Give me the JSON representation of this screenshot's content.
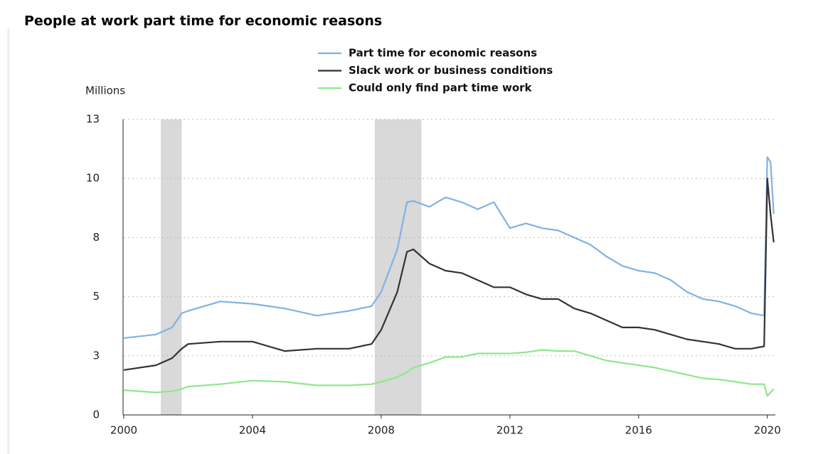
{
  "chart_data": {
    "type": "line",
    "title": "People at work part time for economic reasons",
    "y_label": "Millions",
    "x": [
      2000,
      2001,
      2001.5,
      2001.8,
      2002,
      2003,
      2004,
      2005,
      2006,
      2007,
      2007.7,
      2008,
      2008.5,
      2008.8,
      2009,
      2009.5,
      2010,
      2010.5,
      2011,
      2011.5,
      2012,
      2012.5,
      2013,
      2013.5,
      2014,
      2014.5,
      2015,
      2015.5,
      2016,
      2016.5,
      2017,
      2017.5,
      2018,
      2018.5,
      2019,
      2019.5,
      2019.9,
      2020,
      2020.1,
      2020.2
    ],
    "series": [
      {
        "name": "Part time for economic reasons",
        "color": "#7fb2e5",
        "values": [
          3.25,
          3.4,
          3.7,
          4.3,
          4.4,
          4.8,
          4.7,
          4.5,
          4.2,
          4.4,
          4.6,
          5.2,
          7.0,
          9.0,
          9.05,
          8.8,
          9.2,
          9.0,
          8.7,
          9.0,
          7.9,
          8.1,
          7.9,
          7.8,
          7.5,
          7.2,
          6.7,
          6.3,
          6.1,
          6.0,
          5.7,
          5.2,
          4.9,
          4.8,
          4.6,
          4.3,
          4.2,
          10.9,
          10.7,
          8.5
        ]
      },
      {
        "name": "Slack work or business conditions",
        "color": "#333333",
        "values": [
          1.9,
          2.1,
          2.4,
          2.8,
          3.0,
          3.1,
          3.1,
          2.7,
          2.8,
          2.8,
          3.0,
          3.6,
          5.2,
          6.9,
          7.0,
          6.4,
          6.1,
          6.0,
          5.7,
          5.4,
          5.4,
          5.1,
          4.9,
          4.9,
          4.5,
          4.3,
          4.0,
          3.7,
          3.7,
          3.6,
          3.4,
          3.2,
          3.1,
          3.0,
          2.8,
          2.8,
          2.9,
          10.0,
          8.5,
          7.3
        ]
      },
      {
        "name": "Could only find part time work",
        "color": "#8ee88a",
        "values": [
          1.05,
          0.95,
          1.0,
          1.1,
          1.2,
          1.3,
          1.45,
          1.4,
          1.25,
          1.25,
          1.3,
          1.4,
          1.6,
          1.8,
          2.0,
          2.2,
          2.45,
          2.45,
          2.6,
          2.6,
          2.6,
          2.65,
          2.75,
          2.7,
          2.7,
          2.5,
          2.3,
          2.2,
          2.1,
          2.0,
          1.85,
          1.7,
          1.55,
          1.5,
          1.4,
          1.3,
          1.3,
          0.8,
          0.95,
          1.1
        ]
      }
    ],
    "recessions": [
      [
        2001.15,
        2001.8
      ],
      [
        2007.8,
        2009.25
      ]
    ],
    "xlim": [
      2000,
      2020.25
    ],
    "xticks": [
      2000,
      2004,
      2008,
      2012,
      2016,
      2020
    ],
    "ylim": [
      0,
      12.5
    ],
    "yticks": [
      0,
      {
        "value": 2.5,
        "label": "3"
      },
      5,
      {
        "value": 7.5,
        "label": "8"
      },
      10,
      {
        "value": 12.5,
        "label": "13"
      }
    ],
    "grid": true,
    "recession_color": "#d9d9d9"
  }
}
